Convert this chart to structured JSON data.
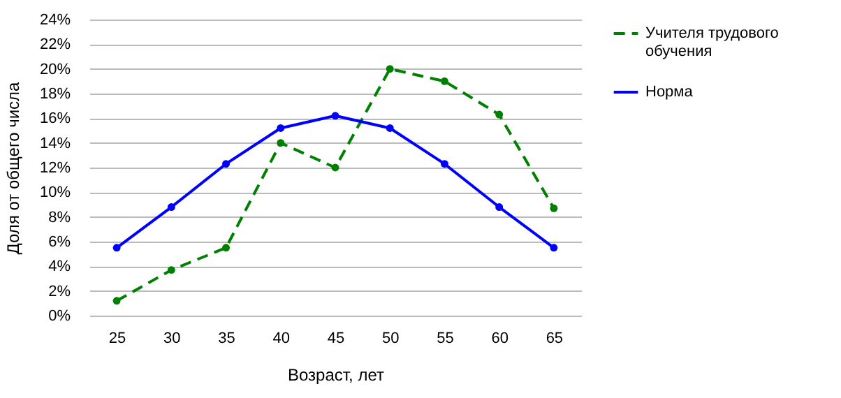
{
  "chart_data": {
    "type": "line",
    "xlabel": "Возраст, лет",
    "ylabel": "Доля от общего числа",
    "categories": [
      "25",
      "30",
      "35",
      "40",
      "45",
      "50",
      "55",
      "60",
      "65"
    ],
    "series": [
      {
        "name": "Учителя трудового обучения",
        "color": "#008000",
        "line_style": "dashed",
        "values": [
          1.2,
          3.7,
          5.5,
          14,
          12,
          20,
          19,
          16.3,
          8.7
        ]
      },
      {
        "name": "Норма",
        "color": "#0000ff",
        "line_style": "solid",
        "values": [
          5.5,
          8.8,
          12.3,
          15.2,
          16.2,
          15.2,
          12.3,
          8.8,
          5.5
        ]
      }
    ],
    "ylim": [
      0,
      24
    ],
    "yticks": [
      {
        "value": 0,
        "label": "0%"
      },
      {
        "value": 2,
        "label": "2%"
      },
      {
        "value": 4,
        "label": "4%"
      },
      {
        "value": 6,
        "label": "6%"
      },
      {
        "value": 8,
        "label": "8%"
      },
      {
        "value": 10,
        "label": "10%"
      },
      {
        "value": 12,
        "label": "12%"
      },
      {
        "value": 14,
        "label": "14%"
      },
      {
        "value": 16,
        "label": "16%"
      },
      {
        "value": 18,
        "label": "18%"
      },
      {
        "value": 20,
        "label": "20%"
      },
      {
        "value": 22,
        "label": "22%"
      },
      {
        "value": 24,
        "label": "24%"
      }
    ],
    "grid": "y",
    "legend": "right",
    "marker": "circle"
  }
}
